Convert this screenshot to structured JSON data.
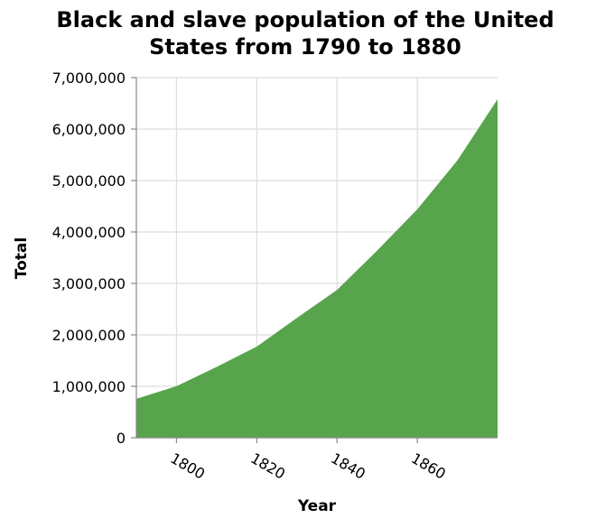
{
  "chart_data": {
    "type": "area",
    "title_lines": [
      "Black and slave population of the United",
      "States from 1790 to 1880"
    ],
    "xlabel": "Year",
    "ylabel": "Total",
    "x": [
      1790,
      1800,
      1810,
      1820,
      1830,
      1840,
      1850,
      1860,
      1870,
      1880
    ],
    "series": [
      {
        "values": [
          757208,
          1002037,
          1377808,
          1771656,
          2328642,
          2873648,
          3638808,
          4441830,
          5392172,
          6580793
        ]
      }
    ],
    "xlim": [
      1790,
      1880
    ],
    "ylim": [
      0,
      7000000
    ],
    "x_ticks": [
      1800,
      1820,
      1840,
      1860
    ],
    "x_tick_labels": [
      "1800",
      "1820",
      "1840",
      "1860"
    ],
    "y_ticks": [
      0,
      1000000,
      2000000,
      3000000,
      4000000,
      5000000,
      6000000,
      7000000
    ],
    "y_tick_labels": [
      "0",
      "1,000,000",
      "2,000,000",
      "3,000,000",
      "4,000,000",
      "5,000,000",
      "6,000,000",
      "7,000,000"
    ],
    "grid": true,
    "colors": {
      "fill": "#57a44c",
      "grid": "#dddddd",
      "axis": "#888888"
    }
  }
}
